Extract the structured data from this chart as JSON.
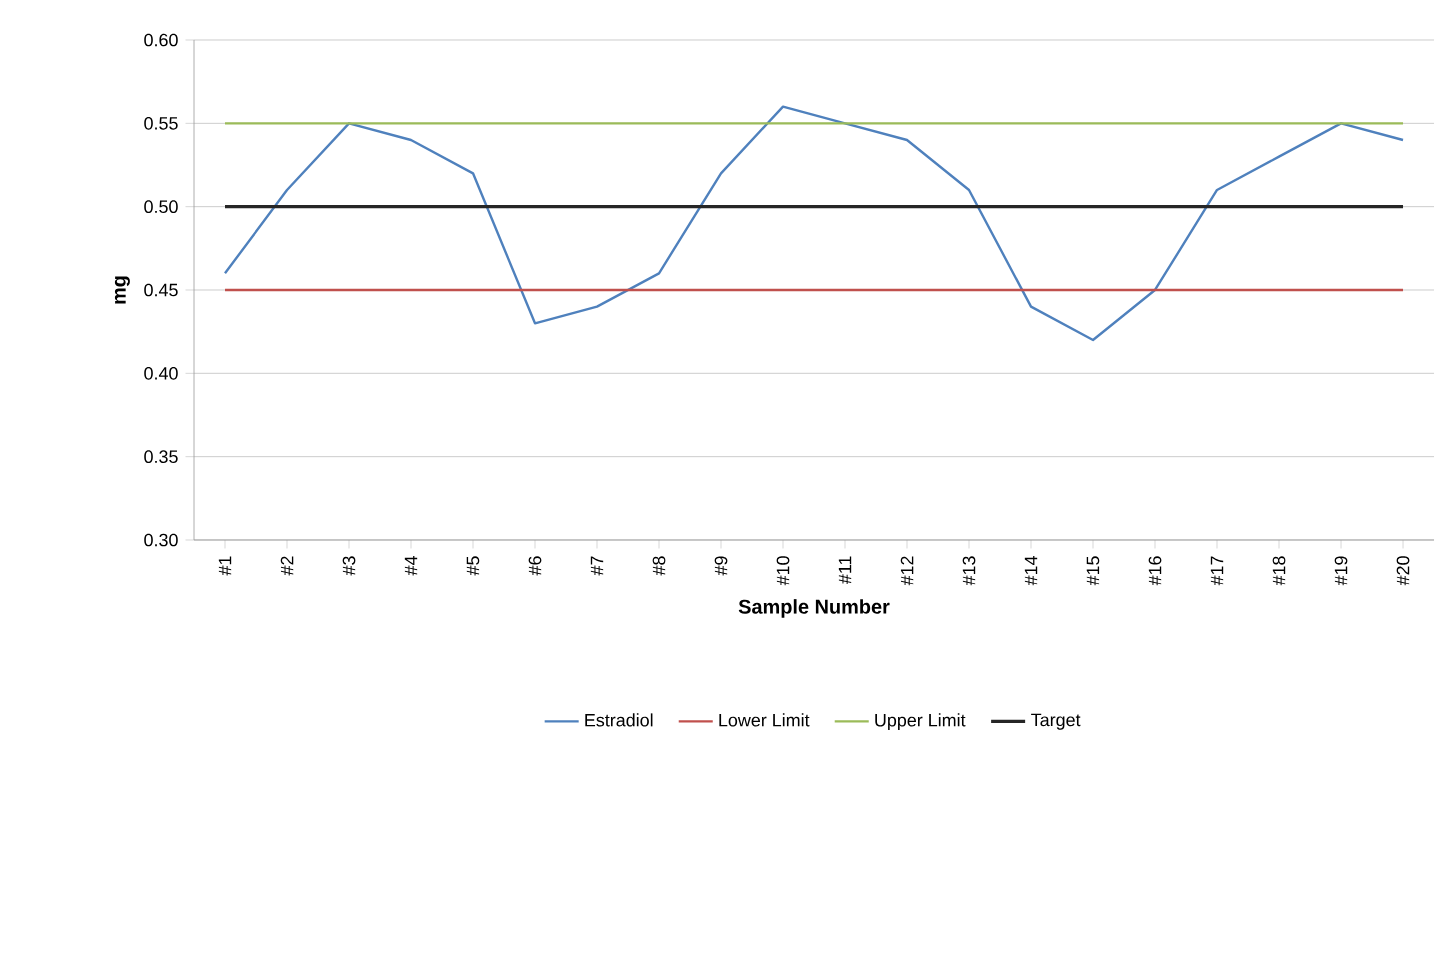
{
  "chart_data": {
    "type": "line",
    "xlabel": "Sample Number",
    "ylabel": "mg",
    "categories": [
      "#1",
      "#2",
      "#3",
      "#4",
      "#5",
      "#6",
      "#7",
      "#8",
      "#9",
      "#10",
      "#11",
      "#12",
      "#13",
      "#14",
      "#15",
      "#16",
      "#17",
      "#18",
      "#19",
      "#20"
    ],
    "series": [
      {
        "name": "Estradiol",
        "color": "#4f81bd",
        "values": [
          0.46,
          0.51,
          0.55,
          0.54,
          0.52,
          0.43,
          0.44,
          0.46,
          0.52,
          0.56,
          0.55,
          0.54,
          0.51,
          0.44,
          0.42,
          0.45,
          0.51,
          0.53,
          0.55,
          0.54
        ]
      },
      {
        "name": "Lower Limit",
        "color": "#c0504d",
        "values": [
          0.45,
          0.45,
          0.45,
          0.45,
          0.45,
          0.45,
          0.45,
          0.45,
          0.45,
          0.45,
          0.45,
          0.45,
          0.45,
          0.45,
          0.45,
          0.45,
          0.45,
          0.45,
          0.45,
          0.45
        ]
      },
      {
        "name": "Upper Limit",
        "color": "#9bbb59",
        "values": [
          0.55,
          0.55,
          0.55,
          0.55,
          0.55,
          0.55,
          0.55,
          0.55,
          0.55,
          0.55,
          0.55,
          0.55,
          0.55,
          0.55,
          0.55,
          0.55,
          0.55,
          0.55,
          0.55,
          0.55
        ]
      },
      {
        "name": "Target",
        "color": "#262626",
        "values": [
          0.5,
          0.5,
          0.5,
          0.5,
          0.5,
          0.5,
          0.5,
          0.5,
          0.5,
          0.5,
          0.5,
          0.5,
          0.5,
          0.5,
          0.5,
          0.5,
          0.5,
          0.5,
          0.5,
          0.5
        ]
      }
    ],
    "ylim": [
      0.3,
      0.6
    ],
    "yticks": [
      {
        "value": 0.3,
        "label": "0.30"
      },
      {
        "value": 0.35,
        "label": "0.35"
      },
      {
        "value": 0.4,
        "label": "0.40"
      },
      {
        "value": 0.45,
        "label": "0.45"
      },
      {
        "value": 0.5,
        "label": "0.50"
      },
      {
        "value": 0.55,
        "label": "0.55"
      },
      {
        "value": 0.6,
        "label": "0.60"
      }
    ],
    "grid": "y",
    "legend": "bottom",
    "marker": "none",
    "line_style": "solid"
  }
}
